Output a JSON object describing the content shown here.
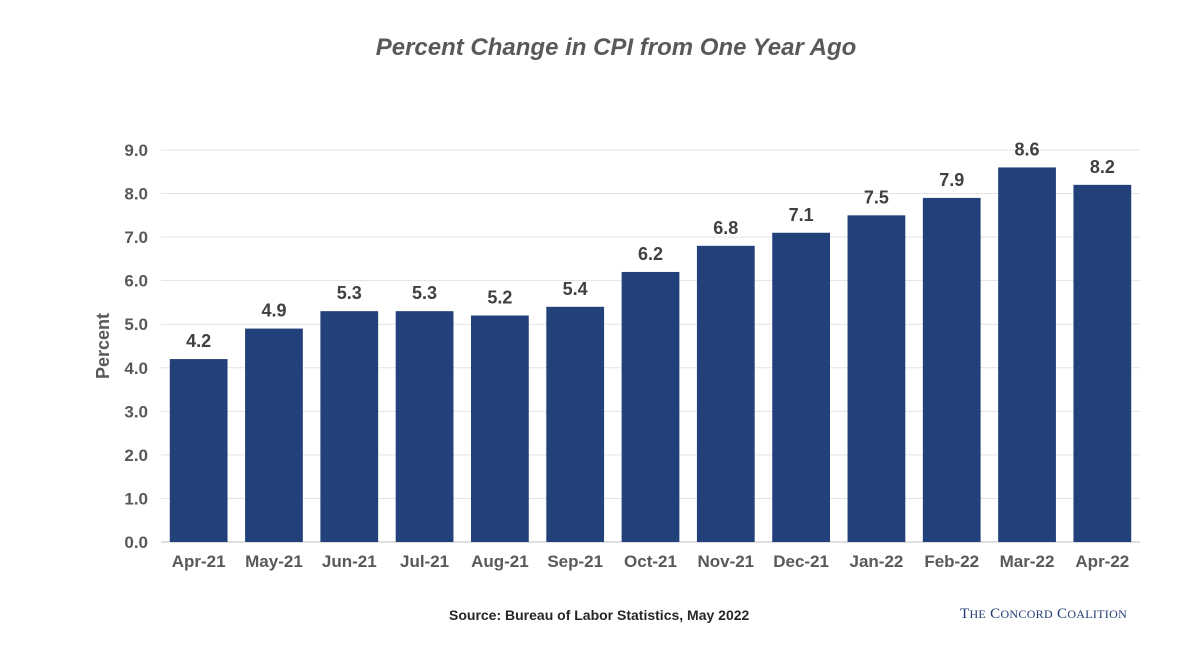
{
  "chart_data": {
    "type": "bar",
    "title": "Percent Change in CPI from One Year Ago",
    "xlabel": "",
    "ylabel": "Percent",
    "ylim": [
      0,
      9
    ],
    "yticks": [
      "0.0",
      "1.0",
      "2.0",
      "3.0",
      "4.0",
      "5.0",
      "6.0",
      "7.0",
      "8.0",
      "9.0"
    ],
    "grid": true,
    "categories": [
      "Apr-21",
      "May-21",
      "Jun-21",
      "Jul-21",
      "Aug-21",
      "Sep-21",
      "Oct-21",
      "Nov-21",
      "Dec-21",
      "Jan-22",
      "Feb-22",
      "Mar-22",
      "Apr-22"
    ],
    "values": [
      4.2,
      4.9,
      5.3,
      5.3,
      5.2,
      5.4,
      6.2,
      6.8,
      7.1,
      7.5,
      7.9,
      8.6,
      8.2
    ],
    "value_labels": [
      "4.2",
      "4.9",
      "5.3",
      "5.3",
      "5.2",
      "5.4",
      "6.2",
      "6.8",
      "7.1",
      "7.5",
      "7.9",
      "8.6",
      "8.2"
    ],
    "bar_color": "#22407a"
  },
  "footer": {
    "source": "Source: Bureau of Labor Statistics, May 2022",
    "organization": "The Concord Coalition",
    "org_color": "#1f3b72"
  }
}
